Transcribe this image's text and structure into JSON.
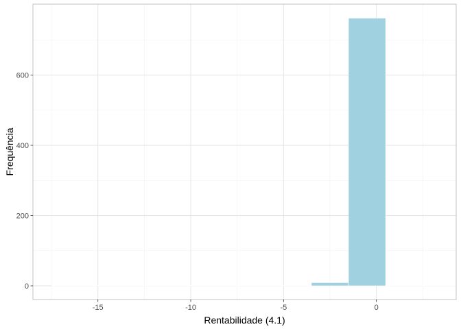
{
  "chart_data": {
    "type": "bar",
    "subtype": "histogram",
    "xlabel": "Rentabilidade (4.1)",
    "ylabel": "Frequência",
    "xlim": [
      -18.5,
      4.3
    ],
    "ylim": [
      0,
      760
    ],
    "x_ticks": [
      -15,
      -10,
      -5,
      0
    ],
    "x_tick_labels": [
      "-15",
      "-10",
      "-5",
      "0"
    ],
    "y_ticks": [
      0,
      200,
      400,
      600
    ],
    "y_tick_labels": [
      "0",
      "200",
      "400",
      "600"
    ],
    "bins": [
      {
        "x0": -17.5,
        "x1": -15.5,
        "count": 1
      },
      {
        "x0": -15.5,
        "x1": -13.5,
        "count": 0
      },
      {
        "x0": -13.5,
        "x1": -11.5,
        "count": 0
      },
      {
        "x0": -11.5,
        "x1": -9.5,
        "count": 0
      },
      {
        "x0": -9.5,
        "x1": -7.5,
        "count": 0
      },
      {
        "x0": -7.5,
        "x1": -5.5,
        "count": 0
      },
      {
        "x0": -5.5,
        "x1": -3.5,
        "count": 0
      },
      {
        "x0": -3.5,
        "x1": -1.5,
        "count": 9
      },
      {
        "x0": -1.5,
        "x1": 0.5,
        "count": 762
      },
      {
        "x0": 0.5,
        "x1": 2.5,
        "count": 0
      },
      {
        "x0": 2.5,
        "x1": 4.5,
        "count": 1
      }
    ],
    "fill_color": "#a0d1e0",
    "bar_edge_color": "#ffffff",
    "grid": true,
    "theme": "light"
  }
}
